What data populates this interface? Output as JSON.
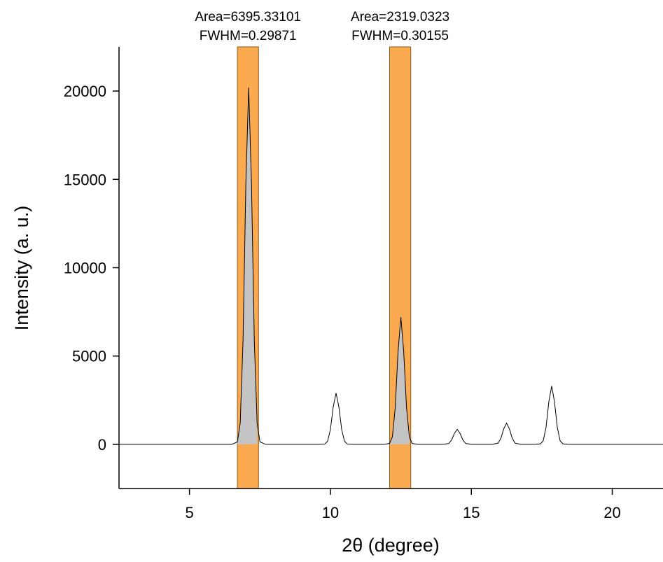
{
  "chart_data": {
    "type": "line",
    "x_label": "2θ (degree)",
    "y_label": "Intensity (a. u.)",
    "xlim": [
      2.5,
      21.8
    ],
    "ylim": [
      -2500,
      22500
    ],
    "xticks": [
      5,
      10,
      15,
      20
    ],
    "yticks": [
      0,
      5000,
      10000,
      15000,
      20000
    ],
    "x": [
      2.5,
      6.5,
      6.7,
      6.8,
      6.9,
      7.0,
      7.1,
      7.2,
      7.3,
      7.4,
      7.5,
      7.7,
      9.6,
      9.8,
      9.9,
      10.0,
      10.1,
      10.2,
      10.3,
      10.4,
      10.5,
      10.6,
      10.8,
      11.9,
      12.1,
      12.2,
      12.3,
      12.4,
      12.5,
      12.6,
      12.7,
      12.8,
      12.9,
      13.1,
      14.0,
      14.2,
      14.3,
      14.4,
      14.5,
      14.6,
      14.7,
      14.8,
      15.0,
      15.75,
      15.95,
      16.05,
      16.15,
      16.25,
      16.35,
      16.45,
      16.55,
      16.75,
      17.25,
      17.45,
      17.55,
      17.65,
      17.75,
      17.85,
      17.95,
      18.05,
      18.15,
      18.25,
      18.45,
      21.8
    ],
    "series": [
      {
        "name": "Intensity",
        "color": "#000000",
        "values": [
          0,
          0,
          140,
          1200,
          5860,
          14750,
          20200,
          14750,
          5860,
          1200,
          140,
          0,
          0,
          20,
          170,
          840,
          2120,
          2900,
          2120,
          840,
          170,
          20,
          0,
          0,
          50,
          430,
          2090,
          5260,
          7200,
          5260,
          2090,
          430,
          50,
          0,
          0,
          50,
          250,
          620,
          850,
          620,
          250,
          50,
          0,
          0,
          70,
          350,
          880,
          1200,
          880,
          350,
          70,
          0,
          0,
          25,
          200,
          960,
          2410,
          3300,
          2410,
          960,
          200,
          25,
          0,
          0
        ]
      }
    ],
    "bands": [
      {
        "range": [
          6.7,
          7.45
        ],
        "color": "#fbaa4f",
        "fill": "#c4c4c4",
        "area_text": "Area=6395.33101",
        "fwhm_text": "FWHM=0.29871"
      },
      {
        "range": [
          12.1,
          12.85
        ],
        "color": "#fbaa4f",
        "fill": "#c4c4c4",
        "area_text": "Area=2319.0323",
        "fwhm_text": "FWHM=0.30155"
      }
    ]
  }
}
